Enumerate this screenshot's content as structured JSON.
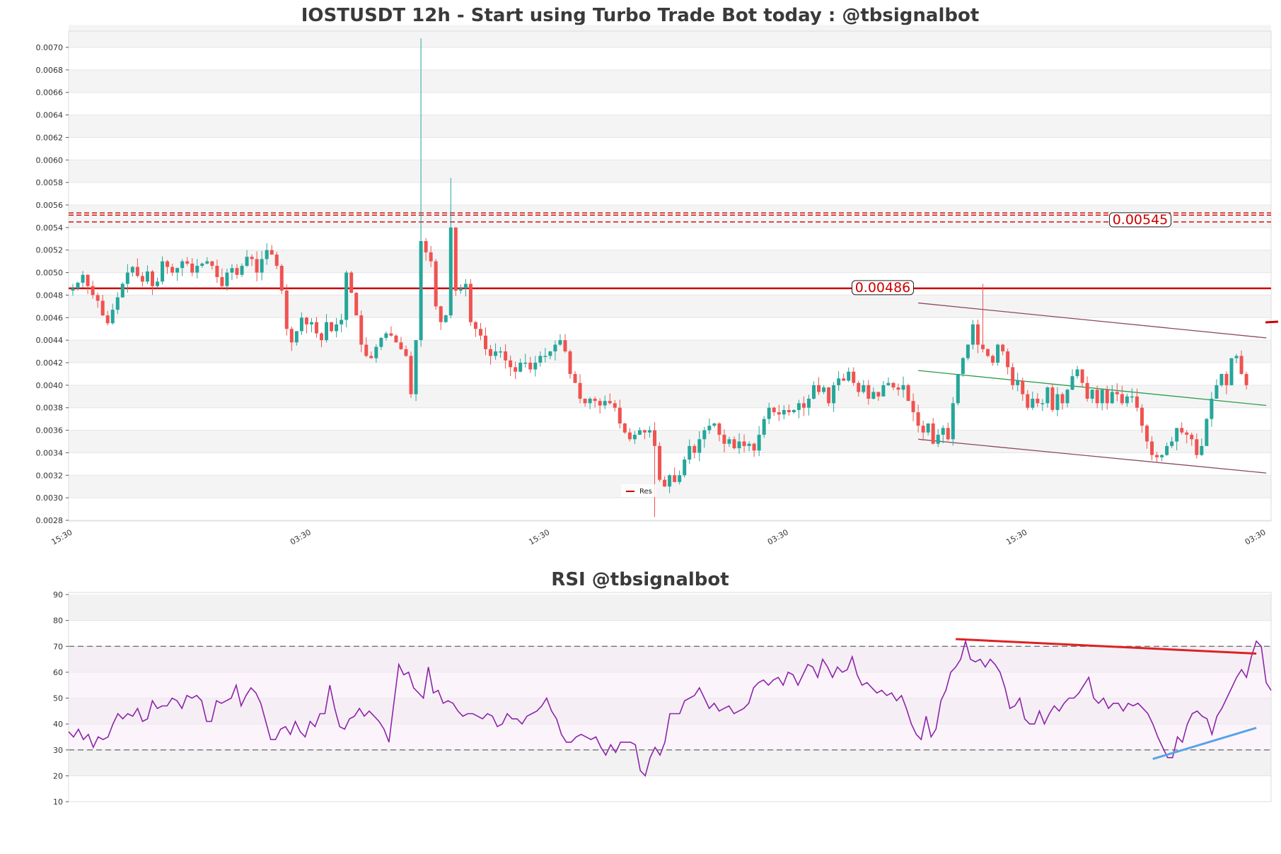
{
  "chart_data": [
    {
      "type": "candlestick",
      "title": "IOSTUSDT 12h - Start using Turbo Trade Bot today : @tbsignalbot",
      "ylim": [
        0.0028,
        0.0071
      ],
      "yticks": [
        "0.0028",
        "0.0030",
        "0.0032",
        "0.0034",
        "0.0036",
        "0.0038",
        "0.0040",
        "0.0042",
        "0.0044",
        "0.0046",
        "0.0048",
        "0.0050",
        "0.0052",
        "0.0054",
        "0.0056",
        "0.0058",
        "0.0060",
        "0.0062",
        "0.0064",
        "0.0066",
        "0.0068",
        "0.0070"
      ],
      "xticks": [
        "15:30",
        "03:30",
        "15:30",
        "03:30",
        "15:30",
        "03:30"
      ],
      "xtick_index": [
        0,
        48,
        96,
        144,
        192,
        240
      ],
      "grid": true,
      "legend": {
        "position": "bottom-center",
        "entries": [
          "Res"
        ]
      },
      "levels": [
        {
          "value": 0.00486,
          "label": "0.00486",
          "color": "#cc0000",
          "style": "solid"
        },
        {
          "value": 0.00545,
          "label": "0.00545",
          "color": "#cc0000",
          "style": "dashed"
        },
        {
          "value": 0.00553,
          "label": "",
          "color": "#cc0000",
          "style": "dashed"
        },
        {
          "value": 0.00551,
          "label": "",
          "color": "#cc0000",
          "style": "dashed"
        }
      ],
      "trendlines": [
        {
          "color": "#8b4a5e",
          "x1": 170,
          "y1": 0.00473,
          "x2": 240,
          "y2": 0.00442
        },
        {
          "color": "#8b4a5e",
          "x1": 170,
          "y1": 0.00352,
          "x2": 240,
          "y2": 0.00322
        },
        {
          "color": "#2e9e4f",
          "x1": 170,
          "y1": 0.00413,
          "x2": 240,
          "y2": 0.00382
        }
      ],
      "close": [
        0.00486,
        0.00491,
        0.00498,
        0.00488,
        0.0048,
        0.00475,
        0.00462,
        0.00455,
        0.00467,
        0.00478,
        0.0049,
        0.005,
        0.00505,
        0.00497,
        0.00492,
        0.00501,
        0.00488,
        0.00492,
        0.0051,
        0.00505,
        0.005,
        0.00504,
        0.0051,
        0.00508,
        0.005,
        0.00506,
        0.00508,
        0.0051,
        0.00506,
        0.00496,
        0.00488,
        0.005,
        0.00504,
        0.00498,
        0.00506,
        0.00514,
        0.00512,
        0.005,
        0.00512,
        0.0052,
        0.00516,
        0.00506,
        0.00484,
        0.0045,
        0.00438,
        0.00448,
        0.0046,
        0.00454,
        0.00456,
        0.00446,
        0.0044,
        0.00456,
        0.00448,
        0.00454,
        0.00458,
        0.005,
        0.00482,
        0.00462,
        0.00436,
        0.00426,
        0.00424,
        0.00434,
        0.00442,
        0.00446,
        0.00444,
        0.00438,
        0.00432,
        0.00426,
        0.00392,
        0.0044,
        0.00528,
        0.00518,
        0.0051,
        0.0047,
        0.00456,
        0.00462,
        0.0054,
        0.00484,
        0.00486,
        0.0049,
        0.00456,
        0.0045,
        0.00444,
        0.00432,
        0.00426,
        0.0043,
        0.0043,
        0.00422,
        0.00416,
        0.00412,
        0.0042,
        0.0042,
        0.00414,
        0.0042,
        0.00426,
        0.00426,
        0.0043,
        0.00436,
        0.0044,
        0.0043,
        0.0041,
        0.00402,
        0.00388,
        0.00384,
        0.00388,
        0.00386,
        0.00382,
        0.00386,
        0.00384,
        0.0038,
        0.00366,
        0.00358,
        0.00352,
        0.00356,
        0.0036,
        0.00358,
        0.0036,
        0.00346,
        0.00316,
        0.0031,
        0.0032,
        0.00314,
        0.0032,
        0.00334,
        0.00346,
        0.0034,
        0.00352,
        0.0036,
        0.00364,
        0.00366,
        0.00356,
        0.00348,
        0.00352,
        0.00344,
        0.0035,
        0.00346,
        0.00348,
        0.00342,
        0.00356,
        0.0037,
        0.0038,
        0.00376,
        0.00374,
        0.00378,
        0.00376,
        0.00378,
        0.00384,
        0.0038,
        0.00388,
        0.004,
        0.00394,
        0.00398,
        0.00384,
        0.004,
        0.00406,
        0.00404,
        0.00412,
        0.00402,
        0.00394,
        0.004,
        0.00388,
        0.00394,
        0.0039,
        0.004,
        0.00402,
        0.00398,
        0.00396,
        0.004,
        0.00386,
        0.00376,
        0.00364,
        0.00358,
        0.00366,
        0.00348,
        0.00356,
        0.00362,
        0.00352,
        0.00384,
        0.0041,
        0.00424,
        0.00436,
        0.00454,
        0.00436,
        0.00432,
        0.00426,
        0.0042,
        0.00436,
        0.0043,
        0.00416,
        0.004,
        0.00404,
        0.00392,
        0.0038,
        0.00388,
        0.00384,
        0.00384,
        0.00398,
        0.00378,
        0.00392,
        0.00384,
        0.00396,
        0.00408,
        0.00414,
        0.00402,
        0.00388,
        0.00396,
        0.00384,
        0.00396,
        0.00384,
        0.00394,
        0.00392,
        0.00384,
        0.0039,
        0.0039,
        0.0038,
        0.00364,
        0.0035,
        0.00338,
        0.00336,
        0.00338,
        0.00346,
        0.0035,
        0.00362,
        0.00358,
        0.00356,
        0.00352,
        0.00338,
        0.00346,
        0.0037,
        0.00388,
        0.004,
        0.0041,
        0.004,
        0.00424,
        0.00426,
        0.0041,
        0.004
      ]
    },
    {
      "type": "line",
      "title": "RSI @tbsignalbot",
      "ylim": [
        10,
        90
      ],
      "yticks": [
        "10",
        "20",
        "30",
        "40",
        "50",
        "60",
        "70",
        "80",
        "90"
      ],
      "grid": true,
      "bands": {
        "overbought": 70,
        "oversold": 30
      },
      "trendlines": [
        {
          "color": "#dd2222",
          "x1": 180,
          "y1": 72.8,
          "x2": 241,
          "y2": 67.2
        },
        {
          "color": "#5aa2e8",
          "x1": 220,
          "y1": 26.5,
          "x2": 241,
          "y2": 38.5
        }
      ],
      "series": [
        {
          "values": [
            37,
            35,
            38,
            34,
            36,
            31,
            35,
            34,
            35,
            40,
            44,
            42,
            44,
            43,
            46,
            41,
            42,
            49,
            46,
            47,
            47,
            50,
            49,
            46,
            51,
            50,
            51,
            49,
            41,
            41,
            49,
            48,
            49,
            50,
            55,
            47,
            51,
            54,
            52,
            48,
            41,
            34,
            34,
            38,
            39,
            36,
            41,
            37,
            35,
            41,
            39,
            44,
            44,
            55,
            46,
            39,
            38,
            42,
            43,
            46,
            43,
            45,
            43,
            41,
            38,
            33,
            48,
            63,
            59,
            60,
            54,
            52,
            50,
            62,
            52,
            53,
            48,
            49,
            48,
            45,
            43,
            44,
            44,
            43,
            42,
            44,
            43,
            39,
            40,
            44,
            42,
            42,
            40,
            43,
            44,
            45,
            47,
            50,
            45,
            42,
            36,
            33,
            33,
            35,
            36,
            35,
            34,
            35,
            31,
            28,
            32,
            29,
            33,
            33,
            33,
            32,
            22,
            20,
            27,
            31,
            28,
            33,
            44,
            44,
            44,
            49,
            50,
            51,
            54,
            50,
            46,
            48,
            45,
            46,
            47,
            44,
            45,
            46,
            48,
            54,
            56,
            57,
            55,
            57,
            58,
            55,
            60,
            59,
            55,
            59,
            63,
            62,
            58,
            65,
            62,
            58,
            62,
            60,
            61,
            66,
            59,
            55,
            56,
            54,
            52,
            53,
            51,
            52,
            49,
            51,
            46,
            40,
            36,
            34,
            43,
            35,
            38,
            49,
            53,
            60,
            62,
            65,
            72,
            65,
            64,
            65,
            62,
            65,
            63,
            60,
            54,
            46,
            47,
            50,
            42,
            40,
            40,
            45,
            40,
            44,
            47,
            45,
            48,
            50,
            50,
            52,
            55,
            58,
            50,
            48,
            50,
            46,
            48,
            48,
            45,
            48,
            47,
            48,
            46,
            44,
            40,
            35,
            31,
            27,
            27,
            35,
            33,
            40,
            44,
            45,
            43,
            42,
            36,
            43,
            46,
            50,
            54,
            58,
            61,
            58,
            66,
            72,
            70,
            56,
            53
          ]
        }
      ]
    }
  ]
}
